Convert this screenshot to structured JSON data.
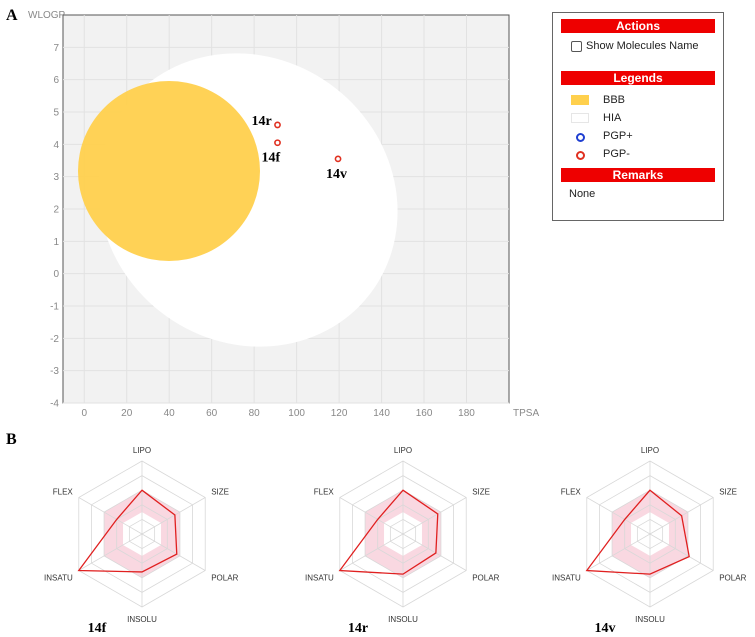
{
  "panel_labels": {
    "a": "A",
    "b": "B"
  },
  "chart_data": [
    {
      "type": "scatter",
      "title": "",
      "xlabel": "TPSA",
      "ylabel": "WLOGP",
      "xlim": [
        -10,
        200
      ],
      "ylim": [
        -4,
        8
      ],
      "x_ticks": [
        0,
        20,
        40,
        60,
        80,
        100,
        120,
        140,
        160,
        180
      ],
      "y_ticks": [
        -4,
        -3,
        -2,
        -1,
        0,
        1,
        2,
        3,
        4,
        5,
        6,
        7
      ],
      "grid": true,
      "regions": [
        {
          "name": "HIA",
          "shape": "ellipse",
          "color": "#ffffff"
        },
        {
          "name": "BBB",
          "shape": "ellipse",
          "color": "#ffd04d"
        }
      ],
      "points": [
        {
          "label": "14r",
          "x": 91,
          "y": 4.6,
          "group": "PGP-"
        },
        {
          "label": "14f",
          "x": 91,
          "y": 4.05,
          "group": "PGP-"
        },
        {
          "label": "14v",
          "x": 119.5,
          "y": 3.55,
          "group": "PGP-"
        }
      ]
    },
    {
      "type": "radar",
      "axes": [
        "LIPO",
        "SIZE",
        "POLAR",
        "INSOLU",
        "INSATU",
        "FLEX"
      ],
      "range": [
        0,
        1
      ],
      "optimal_band": {
        "min": 0.3,
        "max": 0.6,
        "color": "#f7c8d4"
      },
      "series": [
        {
          "name": "14f",
          "values": [
            0.6,
            0.52,
            0.55,
            0.52,
            1.0,
            0.4
          ]
        },
        {
          "name": "14r",
          "values": [
            0.6,
            0.55,
            0.52,
            0.55,
            1.0,
            0.4
          ]
        },
        {
          "name": "14v",
          "values": [
            0.6,
            0.5,
            0.62,
            0.55,
            1.0,
            0.4
          ]
        }
      ],
      "line_color": "#e02020"
    }
  ],
  "side_panel": {
    "actions": {
      "header": "Actions",
      "show_names_label": "Show Molecules Name"
    },
    "legends": {
      "header": "Legends",
      "items": [
        {
          "label": "BBB",
          "color": "#ffd04d"
        },
        {
          "label": "HIA",
          "color": "#ffffff"
        },
        {
          "label": "PGP+",
          "color": "#1f3fd1"
        },
        {
          "label": "PGP-",
          "color": "#e03020"
        }
      ]
    },
    "remarks": {
      "header": "Remarks",
      "text": "None"
    }
  }
}
